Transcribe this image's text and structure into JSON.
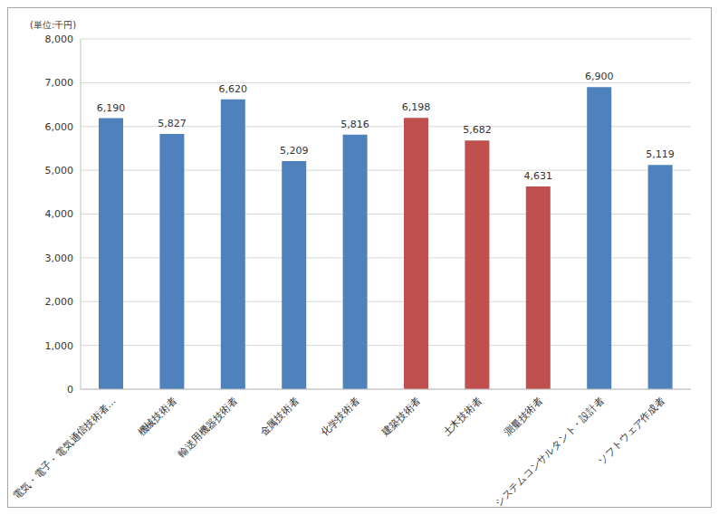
{
  "chart_data": {
    "type": "bar",
    "y_label": "(単位:千円)",
    "categories": [
      "電気・電子・電気通信技術者…",
      "機械技術者",
      "輸送用機器技術者",
      "金属技術者",
      "化学技術者",
      "建築技術者",
      "土木技術者",
      "測量技術者",
      "システムコンサルタント・設計者",
      "ソフトウェア作成者"
    ],
    "values": [
      6190,
      5827,
      6620,
      5209,
      5816,
      6198,
      5682,
      4631,
      6900,
      5119
    ],
    "value_labels": [
      "6,190",
      "5,827",
      "6,620",
      "5,209",
      "5,816",
      "6,198",
      "5,682",
      "4,631",
      "6,900",
      "5,119"
    ],
    "colors": [
      "#4f81bd",
      "#4f81bd",
      "#4f81bd",
      "#4f81bd",
      "#4f81bd",
      "#c0504d",
      "#c0504d",
      "#c0504d",
      "#4f81bd",
      "#4f81bd"
    ],
    "ylim": [
      0,
      8000
    ],
    "yticks": [
      0,
      {
        "value": 1000,
        "label": "1,000"
      },
      {
        "value": 2000,
        "label": "2,000"
      },
      {
        "value": 3000,
        "label": "3,000"
      },
      {
        "value": 4000,
        "label": "4,000"
      },
      {
        "value": 5000,
        "label": "5,000"
      },
      {
        "value": 6000,
        "label": "6,000"
      },
      {
        "value": 7000,
        "label": "7,000"
      },
      {
        "value": 8000,
        "label": "8,000"
      }
    ],
    "grid": true,
    "data_labels": true
  }
}
